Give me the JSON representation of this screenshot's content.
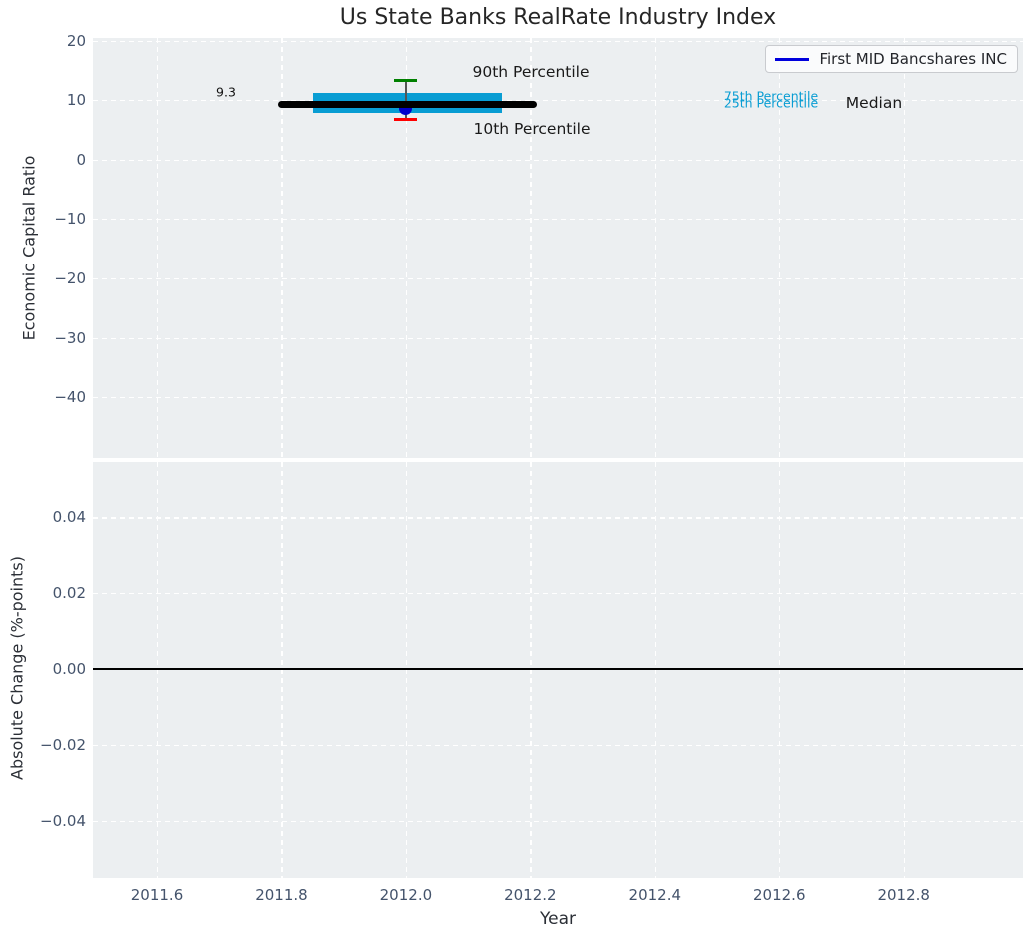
{
  "title": "Us State Banks RealRate Industry Index",
  "legend": {
    "label": "First MID Bancshares INC"
  },
  "colors": {
    "plot_background": "#eceff1",
    "grid": "#ffffff",
    "tick_label": "#44536b",
    "text": "#262626",
    "box_fill": "#099dd3",
    "company_line": "#0000dd",
    "company_marker": "#0000cc",
    "median_line": "#000000",
    "p90_cap": "#008000",
    "p10_cap": "#ff0000",
    "whisker": "#555555",
    "zero_line": "#000000"
  },
  "chart_data": [
    {
      "type": "line",
      "title": "Us State Banks RealRate Industry Index",
      "ylabel": "Economic Capital Ratio",
      "xlabel": "",
      "ylim": [
        -50.6,
        20.6
      ],
      "xlim": [
        2011.5,
        2013.0
      ],
      "grid": true,
      "legend_position": "upper right",
      "legend_entries": [
        "First MID Bancshares INC"
      ],
      "yticks": [
        {
          "v": 20,
          "label": "20"
        },
        {
          "v": 10,
          "label": "10"
        },
        {
          "v": 0,
          "label": "0"
        },
        {
          "v": -10,
          "label": "−10"
        },
        {
          "v": -20,
          "label": "−20"
        },
        {
          "v": -30,
          "label": "−30"
        },
        {
          "v": -40,
          "label": "−40"
        }
      ],
      "xticks": [
        {
          "v": 2011.6,
          "label": "2011.6"
        },
        {
          "v": 2011.8,
          "label": "2011.8"
        },
        {
          "v": 2012.0,
          "label": "2012.0"
        },
        {
          "v": 2012.2,
          "label": "2012.2"
        },
        {
          "v": 2012.4,
          "label": "2012.4"
        },
        {
          "v": 2012.6,
          "label": "2012.6"
        },
        {
          "v": 2012.8,
          "label": "2012.8"
        }
      ],
      "series": [
        {
          "name": "First MID Bancshares INC",
          "x": [
            2012.0
          ],
          "y": [
            8.7
          ],
          "marker": "circle"
        }
      ],
      "industry_distribution": {
        "year": 2012.0,
        "median": 9.3,
        "median_line_span": [
          2011.795,
          2012.21
        ],
        "box_span": [
          2011.85,
          2012.155
        ],
        "p25": 7.8,
        "p75": 11.2,
        "p10": 6.8,
        "p90": 13.3
      },
      "annotations": {
        "p90": "90th Percentile",
        "p10": "10th Percentile",
        "p75": "75th Percentile",
        "p25": "25th Percentile",
        "median": "Median",
        "median_value": "9.3"
      }
    },
    {
      "type": "line",
      "ylabel": "Absolute Change (%-points)",
      "xlabel": "Year",
      "ylim": [
        -0.055,
        0.055
      ],
      "xlim": [
        2011.5,
        2013.0
      ],
      "grid": true,
      "zero_line": 0.0,
      "yticks": [
        {
          "v": 0.04,
          "label": "0.04"
        },
        {
          "v": 0.02,
          "label": "0.02"
        },
        {
          "v": 0.0,
          "label": "0.00"
        },
        {
          "v": -0.02,
          "label": "−0.02"
        },
        {
          "v": -0.04,
          "label": "−0.04"
        }
      ],
      "xticks": [
        {
          "v": 2011.6,
          "label": "2011.6"
        },
        {
          "v": 2011.8,
          "label": "2011.8"
        },
        {
          "v": 2012.0,
          "label": "2012.0"
        },
        {
          "v": 2012.2,
          "label": "2012.2"
        },
        {
          "v": 2012.4,
          "label": "2012.4"
        },
        {
          "v": 2012.6,
          "label": "2012.6"
        },
        {
          "v": 2012.8,
          "label": "2012.8"
        }
      ]
    }
  ]
}
